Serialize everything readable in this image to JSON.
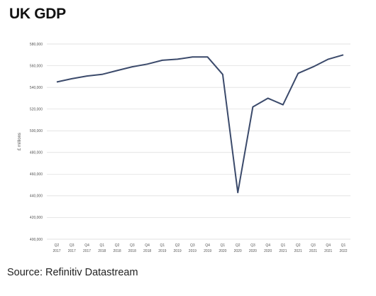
{
  "chart_data": {
    "type": "line",
    "title": "UK GDP",
    "ylabel": "£ millions",
    "xlabel": "",
    "source": "Source: Refinitiv Datastream",
    "ylim": [
      400000,
      580000
    ],
    "yticks": [
      "580,000",
      "560,000",
      "540,000",
      "520,000",
      "500,000",
      "480,000",
      "460,000",
      "440,000",
      "420,000",
      "400,000"
    ],
    "ytick_values": [
      580000,
      560000,
      540000,
      520000,
      500000,
      480000,
      460000,
      440000,
      420000,
      400000
    ],
    "grid": true,
    "line_color": "#3b4a6b",
    "categories": [
      [
        "Q2",
        "2017"
      ],
      [
        "Q3",
        "2017"
      ],
      [
        "Q4",
        "2017"
      ],
      [
        "Q1",
        "2018"
      ],
      [
        "Q2",
        "2018"
      ],
      [
        "Q3",
        "2018"
      ],
      [
        "Q4",
        "2018"
      ],
      [
        "Q1",
        "2019"
      ],
      [
        "Q2",
        "2019"
      ],
      [
        "Q3",
        "2019"
      ],
      [
        "Q4",
        "2019"
      ],
      [
        "Q1",
        "2020"
      ],
      [
        "Q2",
        "2020"
      ],
      [
        "Q3",
        "2020"
      ],
      [
        "Q4",
        "2020"
      ],
      [
        "Q1",
        "2021"
      ],
      [
        "Q2",
        "2021"
      ],
      [
        "Q3",
        "2021"
      ],
      [
        "Q4",
        "2021"
      ],
      [
        "Q1",
        "2022"
      ]
    ],
    "values": [
      545000,
      548000,
      550500,
      552000,
      555500,
      559000,
      561500,
      565000,
      566000,
      568000,
      568000,
      552000,
      443000,
      522000,
      530000,
      524000,
      553000,
      559000,
      566000,
      570000
    ]
  }
}
